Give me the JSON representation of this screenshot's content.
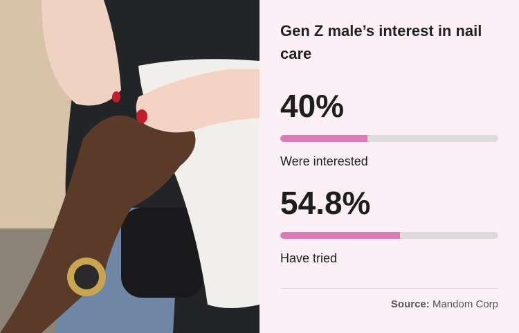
{
  "chart_data": {
    "type": "progress",
    "title": "Gen Z male’s interest in nail care",
    "categories": [
      "Were interested",
      "Have tried"
    ],
    "values": [
      40,
      54.8
    ],
    "value_labels": [
      "40%",
      "54.8%"
    ],
    "xlim": [
      0,
      100
    ],
    "color": "#df7ab8",
    "track_color": "#dedadc",
    "source_label": "Source:",
    "source": "Mandom Corp"
  }
}
